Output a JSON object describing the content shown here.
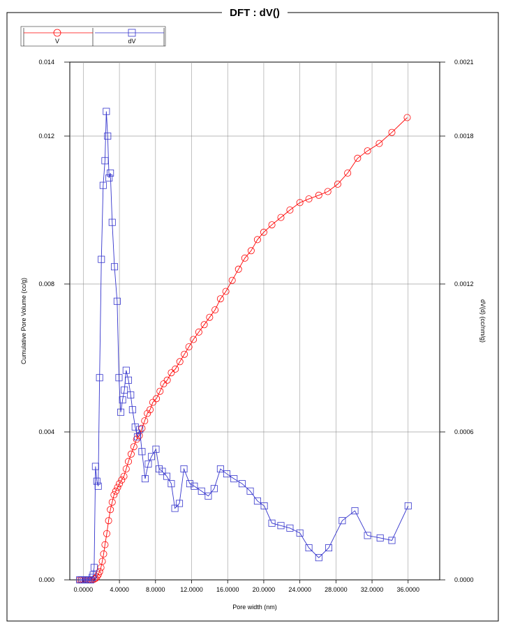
{
  "chart_data": {
    "type": "line",
    "title": "DFT :   dV()",
    "xlabel": "Pore width (nm)",
    "ylabel_left": "Cumulative Pore Volume (cc/g)",
    "ylabel_right": "dV(d) (cc/nm/g)",
    "xlim": [
      -1.5,
      39.5
    ],
    "ylim_left": [
      0,
      0.014
    ],
    "ylim_right": [
      0,
      0.0021
    ],
    "x_ticks": [
      "0.0000",
      "4.0000",
      "8.0000",
      "12.0000",
      "16.0000",
      "20.0000",
      "24.0000",
      "28.0000",
      "32.0000",
      "36.0000"
    ],
    "x_tick_values": [
      0,
      4,
      8,
      12,
      16,
      20,
      24,
      28,
      32,
      36
    ],
    "y_left_ticks": [
      "0.000",
      "0.004",
      "0.008",
      "0.012",
      "0.014"
    ],
    "y_left_tick_values": [
      0,
      0.004,
      0.008,
      0.012,
      0.014
    ],
    "y_right_ticks": [
      "0.0000",
      "0.0006",
      "0.0012",
      "0.0018",
      "0.0021"
    ],
    "y_right_tick_values": [
      0,
      0.0006,
      0.0012,
      0.0018,
      0.0021
    ],
    "grid": true,
    "legend_position": "top-left",
    "series": [
      {
        "name": "V",
        "axis": "left",
        "color": "#ff0000",
        "marker": "circle",
        "x": [
          -0.4,
          -0.2,
          0,
          0.2,
          0.4,
          0.6,
          0.8,
          1.0,
          1.2,
          1.35,
          1.5,
          1.65,
          1.8,
          1.95,
          2.1,
          2.25,
          2.4,
          2.6,
          2.8,
          3.0,
          3.2,
          3.4,
          3.6,
          3.8,
          4.0,
          4.25,
          4.5,
          4.75,
          5.0,
          5.3,
          5.6,
          5.9,
          6.2,
          6.5,
          6.8,
          7.1,
          7.4,
          7.7,
          8.1,
          8.5,
          8.9,
          9.3,
          9.75,
          10.2,
          10.7,
          11.2,
          11.7,
          12.2,
          12.8,
          13.4,
          14.0,
          14.6,
          15.2,
          15.8,
          16.5,
          17.2,
          17.9,
          18.6,
          19.3,
          20.0,
          20.9,
          21.9,
          22.9,
          24.0,
          25.0,
          26.1,
          27.1,
          28.2,
          29.3,
          30.4,
          31.5,
          32.8,
          34.2,
          35.9
        ],
        "values": [
          0,
          0,
          0,
          0,
          0,
          0,
          0,
          0,
          2e-05,
          4e-05,
          8e-05,
          0.00014,
          0.00022,
          0.00033,
          0.0005,
          0.0007,
          0.00095,
          0.00125,
          0.0016,
          0.0019,
          0.0021,
          0.0023,
          0.0024,
          0.0025,
          0.0026,
          0.0027,
          0.0028,
          0.003,
          0.0032,
          0.0034,
          0.0036,
          0.0038,
          0.0039,
          0.0041,
          0.0043,
          0.0045,
          0.0046,
          0.0048,
          0.0049,
          0.0051,
          0.0053,
          0.0054,
          0.0056,
          0.0057,
          0.0059,
          0.0061,
          0.0063,
          0.0065,
          0.0067,
          0.0069,
          0.0071,
          0.0073,
          0.0076,
          0.0078,
          0.0081,
          0.0084,
          0.0087,
          0.0089,
          0.0092,
          0.0094,
          0.0096,
          0.0098,
          0.01,
          0.0102,
          0.0103,
          0.0104,
          0.0105,
          0.0107,
          0.011,
          0.0114,
          0.0116,
          0.0118,
          0.0121,
          0.0125
        ]
      },
      {
        "name": "dV",
        "axis": "right",
        "color": "#3333cc",
        "marker": "square",
        "x": [
          -0.4,
          -0.2,
          0,
          0.2,
          0.4,
          0.6,
          0.8,
          1.0,
          1.1,
          1.2,
          1.35,
          1.5,
          1.65,
          1.8,
          2.0,
          2.2,
          2.4,
          2.55,
          2.7,
          2.85,
          3.0,
          3.2,
          3.45,
          3.75,
          3.95,
          4.15,
          4.35,
          4.55,
          4.75,
          5.0,
          5.25,
          5.45,
          5.75,
          6.0,
          6.25,
          6.5,
          6.85,
          7.2,
          7.55,
          8.05,
          8.4,
          8.75,
          9.25,
          9.75,
          10.15,
          10.65,
          11.15,
          11.8,
          12.3,
          13.1,
          13.85,
          14.5,
          15.2,
          15.9,
          16.7,
          17.6,
          18.5,
          19.3,
          20.05,
          20.9,
          21.9,
          22.9,
          24.0,
          25.0,
          26.1,
          27.2,
          28.7,
          30.1,
          31.5,
          32.9,
          34.2,
          36.0
        ],
        "values": [
          0,
          0,
          0,
          0,
          0,
          0,
          0,
          1e-05,
          2e-05,
          5e-05,
          0.00046,
          0.0004,
          0.00038,
          0.00082,
          0.0013,
          0.0016,
          0.0017,
          0.0019,
          0.0018,
          0.00163,
          0.00165,
          0.00145,
          0.00127,
          0.00113,
          0.00082,
          0.00068,
          0.00073,
          0.00077,
          0.00085,
          0.00081,
          0.00075,
          0.00069,
          0.00062,
          0.00058,
          0.00061,
          0.00052,
          0.00041,
          0.00047,
          0.0005,
          0.00053,
          0.00045,
          0.00044,
          0.00042,
          0.00039,
          0.00029,
          0.00031,
          0.00045,
          0.00039,
          0.00038,
          0.00036,
          0.00034,
          0.00037,
          0.00045,
          0.00043,
          0.00041,
          0.00039,
          0.00036,
          0.00032,
          0.0003,
          0.00023,
          0.00022,
          0.00021,
          0.00019,
          0.00013,
          9e-05,
          0.00013,
          0.00024,
          0.00028,
          0.00018,
          0.00017,
          0.00016,
          0.0003
        ]
      }
    ]
  }
}
